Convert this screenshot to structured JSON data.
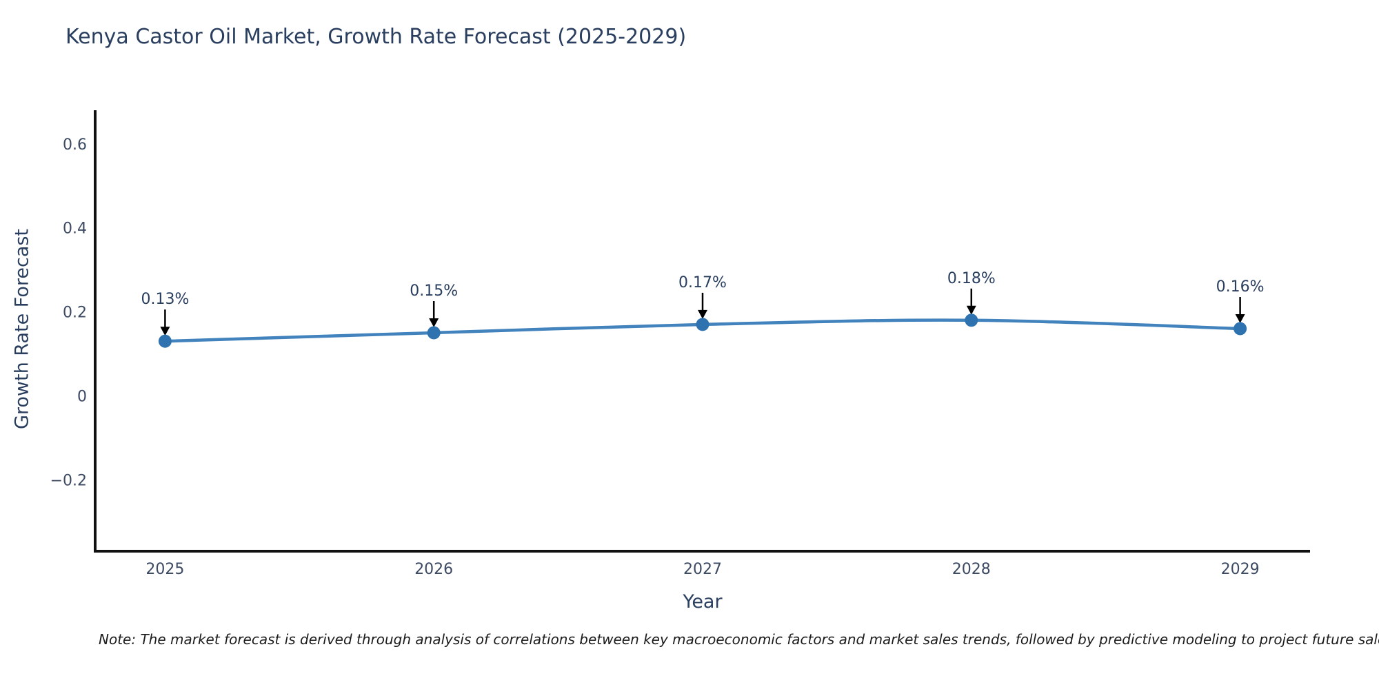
{
  "chart_data": {
    "type": "line",
    "title": "Kenya Castor Oil Market, Growth Rate Forecast (2025-2029)",
    "xlabel": "Year",
    "ylabel": "Growth Rate Forecast",
    "x": [
      2025,
      2026,
      2027,
      2028,
      2029
    ],
    "values": [
      0.13,
      0.15,
      0.17,
      0.18,
      0.16
    ],
    "point_labels": [
      "0.13%",
      "0.15%",
      "0.17%",
      "0.18%",
      "0.16%"
    ],
    "xtick_labels": [
      "2025",
      "2026",
      "2027",
      "2028",
      "2029"
    ],
    "yticks": [
      0.6,
      0.4,
      0.2,
      0,
      -0.2
    ],
    "ytick_labels": [
      "0.6",
      "0.4",
      "0.2",
      "0",
      "−0.2"
    ],
    "xlim": [
      2024.74,
      2029.26
    ],
    "ylim": [
      -0.37,
      0.68
    ],
    "grid": false,
    "legend": "none",
    "line_shape": "spline",
    "colors": {
      "line": "#4383bd",
      "marker": "#2e73b0",
      "axis": "#111111",
      "title_text": "#2a3f5f",
      "tick_text": "#3d4a63",
      "annotation_arrow": "#000000"
    }
  },
  "note": "Note: The market forecast is derived through analysis of correlations between key macroeconomic factors and market sales trends, followed by predictive modeling to project future sales"
}
